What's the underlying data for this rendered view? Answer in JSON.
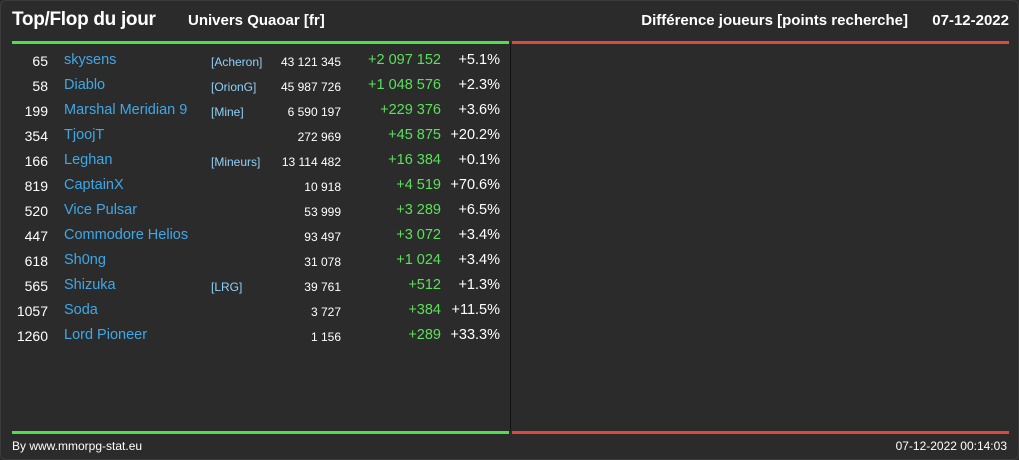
{
  "header": {
    "title": "Top/Flop du jour",
    "subtitle": "Univers Quaoar [fr]",
    "metric": "Différence joueurs [points recherche]",
    "date": "07-12-2022"
  },
  "colors": {
    "top_line": "#4ce04c",
    "flop_line": "#e0473f",
    "player_link": "#3ea8e8",
    "alliance_link": "#8fd0f7",
    "gain": "#5be05b"
  },
  "top_list": [
    {
      "rank": "65",
      "player": "skysens",
      "alliance": "[Acheron]",
      "points": "43 121 345",
      "diff": "+2 097 152",
      "pct": "+5.1%"
    },
    {
      "rank": "58",
      "player": "Diablo",
      "alliance": "[OrionG]",
      "points": "45 987 726",
      "diff": "+1 048 576",
      "pct": "+2.3%"
    },
    {
      "rank": "199",
      "player": "Marshal Meridian 9",
      "alliance": "[Mine]",
      "points": "6 590 197",
      "diff": "+229 376",
      "pct": "+3.6%"
    },
    {
      "rank": "354",
      "player": "TjoojT",
      "alliance": "",
      "points": "272 969",
      "diff": "+45 875",
      "pct": "+20.2%"
    },
    {
      "rank": "166",
      "player": "Leghan",
      "alliance": "[Mineurs]",
      "points": "13 114 482",
      "diff": "+16 384",
      "pct": "+0.1%"
    },
    {
      "rank": "819",
      "player": "CaptainX",
      "alliance": "",
      "points": "10 918",
      "diff": "+4 519",
      "pct": "+70.6%"
    },
    {
      "rank": "520",
      "player": "Vice Pulsar",
      "alliance": "",
      "points": "53 999",
      "diff": "+3 289",
      "pct": "+6.5%"
    },
    {
      "rank": "447",
      "player": "Commodore Helios",
      "alliance": "",
      "points": "93 497",
      "diff": "+3 072",
      "pct": "+3.4%"
    },
    {
      "rank": "618",
      "player": "Sh0ng",
      "alliance": "",
      "points": "31 078",
      "diff": "+1 024",
      "pct": "+3.4%"
    },
    {
      "rank": "565",
      "player": "Shizuka",
      "alliance": "[LRG]",
      "points": "39 761",
      "diff": "+512",
      "pct": "+1.3%"
    },
    {
      "rank": "1057",
      "player": "Soda",
      "alliance": "",
      "points": "3 727",
      "diff": "+384",
      "pct": "+11.5%"
    },
    {
      "rank": "1260",
      "player": "Lord Pioneer",
      "alliance": "",
      "points": "1 156",
      "diff": "+289",
      "pct": "+33.3%"
    }
  ],
  "footer": {
    "credit": "By www.mmorpg-stat.eu",
    "timestamp": "07-12-2022 00:14:03"
  }
}
